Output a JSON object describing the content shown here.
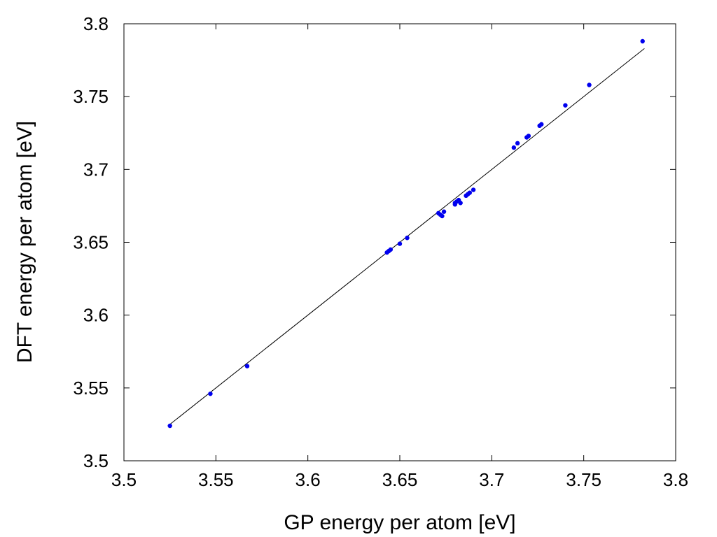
{
  "chart_data": {
    "type": "scatter",
    "title": "",
    "xlabel": "GP energy per atom [eV]",
    "ylabel": "DFT energy per atom [eV]",
    "xlim": [
      3.5,
      3.8
    ],
    "ylim": [
      3.5,
      3.8
    ],
    "grid": false,
    "x_ticks": [
      3.5,
      3.55,
      3.6,
      3.65,
      3.7,
      3.75,
      3.8
    ],
    "y_ticks": [
      3.5,
      3.55,
      3.6,
      3.65,
      3.7,
      3.75,
      3.8
    ],
    "x_tick_labels": [
      "3.5",
      "3.55",
      "3.6",
      "3.65",
      "3.7",
      "3.75",
      "3.8"
    ],
    "y_tick_labels": [
      "3.5",
      "3.55",
      "3.6",
      "3.65",
      "3.7",
      "3.75",
      "3.8"
    ],
    "point_color": "#0000ee",
    "line_color": "#000000",
    "fit_line": {
      "x": [
        3.525,
        3.783
      ],
      "y": [
        3.525,
        3.783
      ]
    },
    "series": [
      {
        "name": "data",
        "points": [
          [
            3.525,
            3.524
          ],
          [
            3.547,
            3.546
          ],
          [
            3.567,
            3.565
          ],
          [
            3.643,
            3.643
          ],
          [
            3.644,
            3.644
          ],
          [
            3.645,
            3.645
          ],
          [
            3.65,
            3.649
          ],
          [
            3.654,
            3.653
          ],
          [
            3.671,
            3.67
          ],
          [
            3.672,
            3.669
          ],
          [
            3.673,
            3.668
          ],
          [
            3.674,
            3.671
          ],
          [
            3.68,
            3.676
          ],
          [
            3.68,
            3.677
          ],
          [
            3.681,
            3.678
          ],
          [
            3.682,
            3.679
          ],
          [
            3.683,
            3.677
          ],
          [
            3.686,
            3.682
          ],
          [
            3.687,
            3.683
          ],
          [
            3.688,
            3.684
          ],
          [
            3.69,
            3.686
          ],
          [
            3.712,
            3.715
          ],
          [
            3.714,
            3.718
          ],
          [
            3.719,
            3.722
          ],
          [
            3.72,
            3.723
          ],
          [
            3.726,
            3.73
          ],
          [
            3.727,
            3.731
          ],
          [
            3.74,
            3.744
          ],
          [
            3.753,
            3.758
          ],
          [
            3.782,
            3.788
          ]
        ]
      }
    ]
  }
}
